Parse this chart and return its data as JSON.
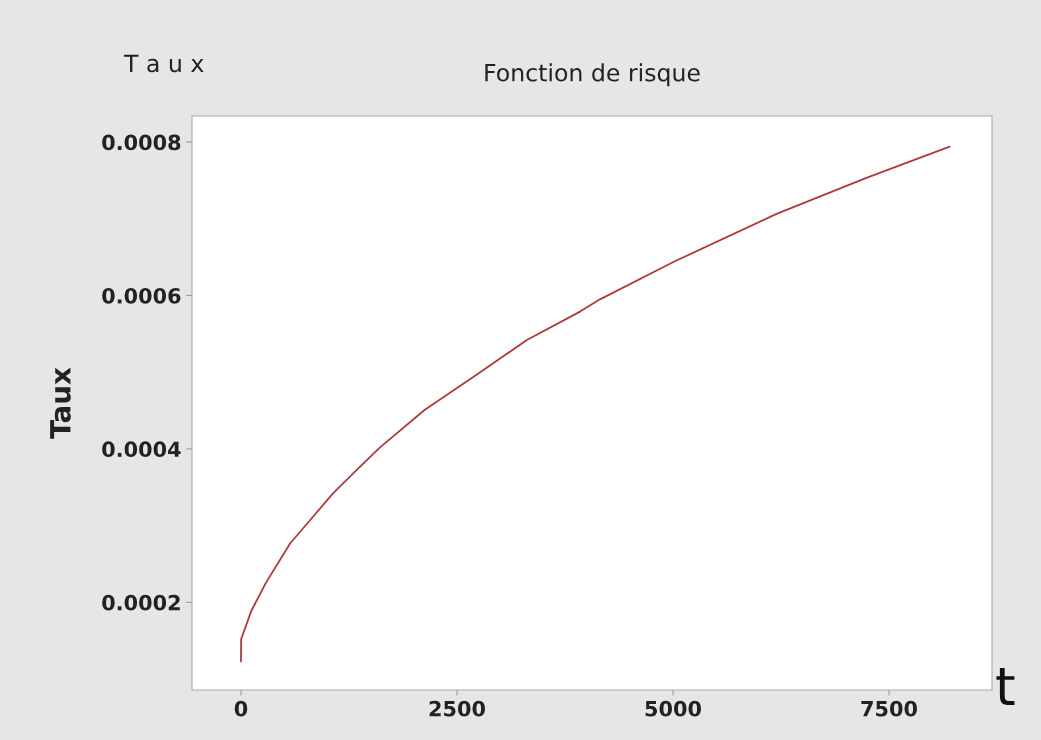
{
  "chart_data": {
    "type": "line",
    "title": "Fonction de risque",
    "xlabel": "t",
    "ylabel": "Taux",
    "annotations": [
      "T a u x"
    ],
    "x": [
      0,
      2,
      120,
      286,
      570,
      806,
      1065,
      1325,
      1609,
      2128,
      2718,
      3309,
      3924,
      4155,
      5010,
      6192,
      7231,
      8200
    ],
    "series": [
      {
        "color": "#b03a3a",
        "values": [
          0.000123,
          0.000152,
          0.000189,
          0.000225,
          0.000277,
          0.000308,
          0.000342,
          0.000371,
          0.000402,
          0.000451,
          0.000496,
          0.000542,
          0.000579,
          0.000595,
          0.000644,
          0.000706,
          0.000753,
          0.000794
        ]
      }
    ],
    "xlim": [
      -567,
      8692
    ],
    "ylim": [
      8.57e-05,
      0.000834
    ],
    "xticks": [
      0,
      2500,
      5000,
      7500
    ],
    "yticks": [
      0.0002,
      0.0004,
      0.0006,
      0.0008
    ],
    "grid": false,
    "legend": false,
    "marker": "none",
    "line_style": "solid"
  }
}
